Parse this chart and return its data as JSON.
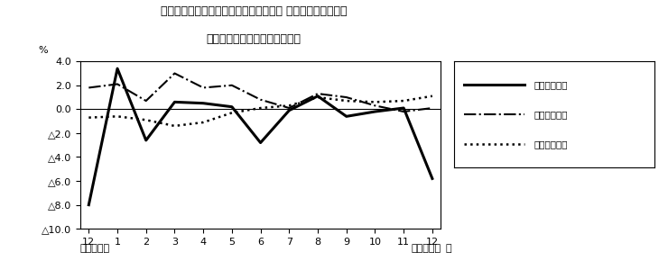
{
  "title_line1": "第４図　賃金、労働時間、常用雇用指数 対前年同月比の推移",
  "title_line2": "（規模５人以上　調査産業計）",
  "xlabel_right": "月",
  "ylabel": "%",
  "x_labels": [
    "12",
    "1",
    "2",
    "3",
    "4",
    "5",
    "6",
    "7",
    "8",
    "9",
    "10",
    "11",
    "12"
  ],
  "x_bottom_left": "平成２１年",
  "x_bottom_right": "平成２２年",
  "ylim": [
    -10.0,
    4.0
  ],
  "yticks": [
    4.0,
    2.0,
    0.0,
    -2.0,
    -4.0,
    -6.0,
    -8.0,
    -10.0
  ],
  "ytick_labels": [
    "4.0",
    "2.0",
    "0.0",
    "△2.0",
    "△4.0",
    "△6.0",
    "△8.0",
    "△10.0"
  ],
  "legend_label_genkin": "現金給与総額",
  "legend_label_jikan": "総実労働時間",
  "legend_label_koyo": "常用雇用指数",
  "series_genkin": {
    "linestyle": "solid",
    "linewidth": 2.2,
    "color": "#000000",
    "values": [
      -8.0,
      3.4,
      -2.6,
      0.6,
      0.5,
      0.2,
      -2.8,
      -0.1,
      1.1,
      -0.6,
      -0.2,
      0.1,
      -5.8
    ]
  },
  "series_jikan": {
    "linestyle": "dashdot",
    "linewidth": 1.5,
    "color": "#000000",
    "values": [
      1.8,
      2.1,
      0.7,
      3.0,
      1.8,
      2.0,
      0.8,
      0.1,
      1.3,
      1.0,
      0.3,
      -0.2,
      0.1
    ]
  },
  "series_koyo": {
    "linestyle": "dotted",
    "linewidth": 1.8,
    "color": "#000000",
    "values": [
      -0.7,
      -0.6,
      -0.9,
      -1.4,
      -1.1,
      -0.3,
      0.1,
      0.3,
      1.0,
      0.7,
      0.6,
      0.7,
      1.1
    ]
  },
  "background_color": "#ffffff"
}
